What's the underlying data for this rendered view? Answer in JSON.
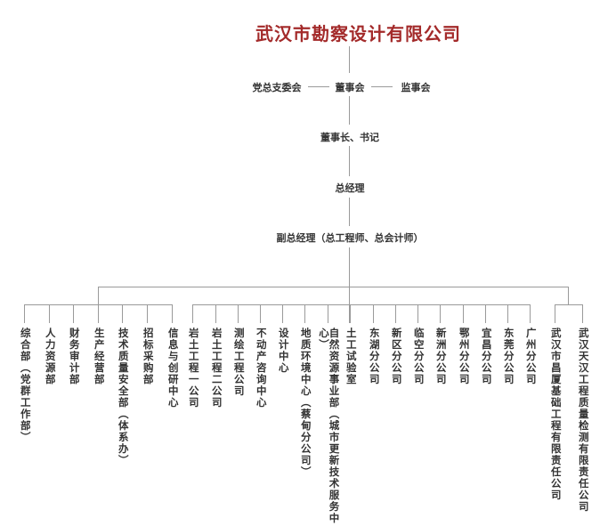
{
  "title": "武汉市勘察设计有限公司",
  "top_nodes": {
    "party": "党总支委会",
    "board": "董事会",
    "supervisors": "监事会",
    "chairman": "董事长、书记",
    "gm": "总经理",
    "deputy_gm": "副总经理（总工程师、总会计师）"
  },
  "departments": [
    "综合部（党群工作部）",
    "人力资源部",
    "财务审计部",
    "生产经营部",
    "技术质量安全部（体系办）",
    "招标采购部",
    "信息与创研中心"
  ],
  "units": [
    "岩土工程一公司",
    "岩土工程二公司",
    "测绘工程公司",
    "不动产咨询中心",
    "设计中心",
    "地质环境中心（蔡甸分公司）",
    "自然资源事业部（城市更新技术服务中心）",
    "土工试验室",
    "东湖分公司",
    "新区分公司",
    "临空分公司",
    "新洲分公司",
    "鄂州分公司",
    "宜昌分公司",
    "东莞分公司",
    "广州分公司"
  ],
  "subsidiaries": [
    "武汉市昌厦基础工程有限责任公司",
    "武汉天汉工程质量检测有限责任公司"
  ],
  "colors": {
    "title": "#a32a2a",
    "text": "#333333",
    "lines": "#9a9a9a"
  }
}
